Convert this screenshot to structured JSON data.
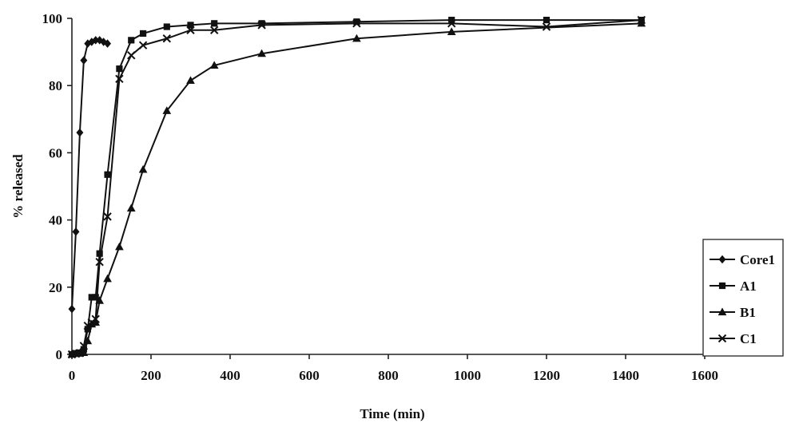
{
  "chart_data": {
    "type": "line",
    "xlabel": "Time (min)",
    "ylabel": "% released",
    "xlim": [
      0,
      1600
    ],
    "ylim": [
      0,
      100
    ],
    "xticks": [
      "0",
      "200",
      "400",
      "600",
      "800",
      "1000",
      "1200",
      "1400",
      "1600"
    ],
    "yticks": [
      "0",
      "20",
      "40",
      "60",
      "80",
      "100"
    ],
    "grid": false,
    "legend_position": "right",
    "colors": {
      "line": "#111111",
      "axis": "#222222",
      "background": "#ffffff"
    },
    "series": [
      {
        "name": "Core1",
        "marker": "diamond",
        "x": [
          0,
          10,
          20,
          30,
          40,
          50,
          60,
          70,
          80,
          90
        ],
        "y": [
          13.5,
          36.5,
          66,
          87.5,
          92.5,
          93,
          93.5,
          93.5,
          93,
          92.5
        ]
      },
      {
        "name": "A1",
        "marker": "square",
        "x": [
          0,
          10,
          20,
          30,
          40,
          50,
          60,
          70,
          90,
          120,
          150,
          180,
          240,
          300,
          360,
          480,
          720,
          960,
          1200,
          1440
        ],
        "y": [
          0,
          0.3,
          0.5,
          1.5,
          7.5,
          17,
          17,
          30,
          53.5,
          85,
          93.5,
          95.5,
          97.5,
          98,
          98.5,
          98.5,
          99,
          99.5,
          99.5,
          99.5
        ]
      },
      {
        "name": "B1",
        "marker": "triangle",
        "x": [
          0,
          10,
          20,
          30,
          40,
          50,
          60,
          70,
          90,
          120,
          150,
          180,
          240,
          300,
          360,
          480,
          720,
          960,
          1440
        ],
        "y": [
          0,
          0.2,
          0.3,
          0.5,
          4,
          9,
          9.5,
          16,
          22.5,
          32,
          43.5,
          55,
          72.5,
          81.5,
          86,
          89.5,
          94,
          96,
          98.5
        ]
      },
      {
        "name": "C1",
        "marker": "x",
        "x": [
          0,
          10,
          20,
          30,
          40,
          50,
          60,
          70,
          90,
          120,
          150,
          180,
          240,
          300,
          360,
          480,
          720,
          960,
          1200,
          1440
        ],
        "y": [
          0,
          0.2,
          0.4,
          2.5,
          8.5,
          9.5,
          10.5,
          27.5,
          41,
          82,
          89,
          92,
          94,
          96.5,
          96.5,
          98,
          98.5,
          98.5,
          97.5,
          99.5
        ]
      }
    ]
  }
}
